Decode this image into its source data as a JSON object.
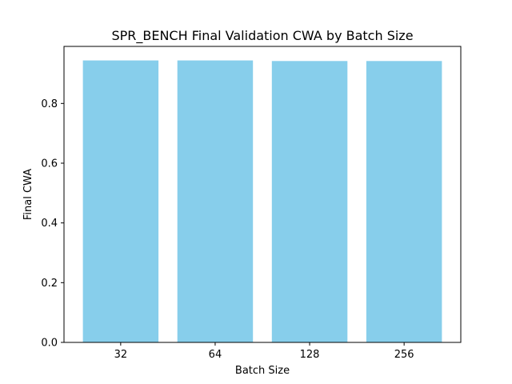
{
  "chart_data": {
    "type": "bar",
    "title": "SPR_BENCH Final Validation CWA by Batch Size",
    "xlabel": "Batch Size",
    "ylabel": "Final CWA",
    "categories": [
      "32",
      "64",
      "128",
      "256"
    ],
    "values": [
      0.944,
      0.944,
      0.942,
      0.942
    ],
    "ylim": [
      0,
      0.991
    ],
    "yticks": [
      "0.0",
      "0.2",
      "0.4",
      "0.6",
      "0.8"
    ],
    "ytick_values": [
      0.0,
      0.2,
      0.4,
      0.6,
      0.8
    ],
    "bar_color": "#87ceeb",
    "grid": false,
    "legend": false
  }
}
